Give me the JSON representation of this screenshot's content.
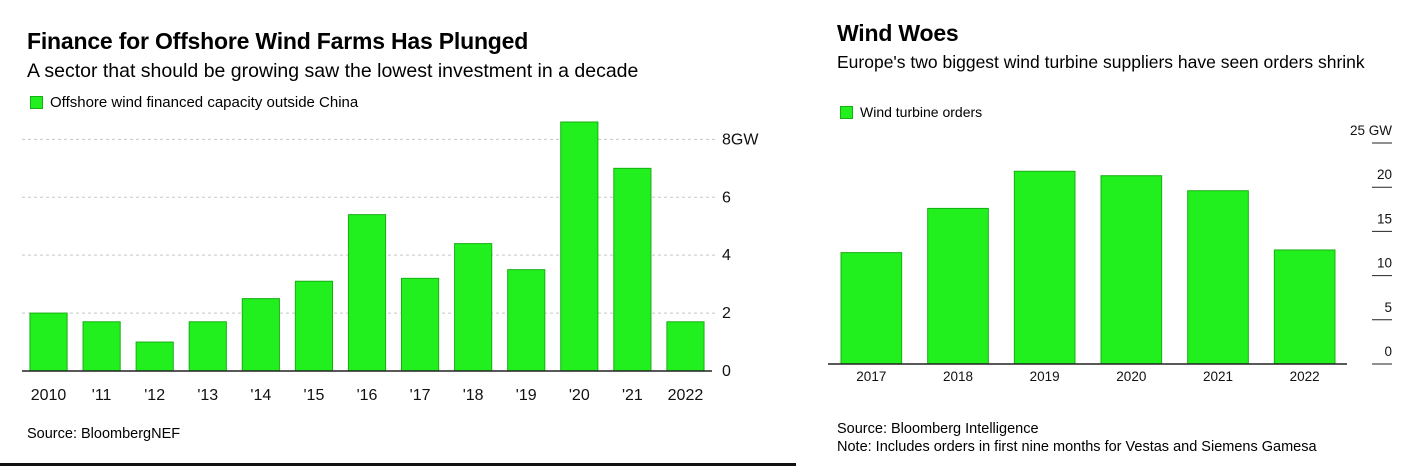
{
  "colors": {
    "bar": "#22f01e",
    "bar_border": "#16b012",
    "grid": "#c8c8c8",
    "axis": "#222222"
  },
  "left": {
    "title": "Finance for Offshore Wind Farms Has Plunged",
    "subtitle": "A sector that should be growing saw the lowest investment in a decade",
    "legend_label": "Offshore wind financed capacity outside China",
    "source": "Source: BloombergNEF"
  },
  "right": {
    "title": "Wind Woes",
    "subtitle": "Europe's two biggest wind turbine suppliers have seen orders shrink",
    "legend_label": "Wind turbine orders",
    "source": "Source: Bloomberg Intelligence",
    "note": "Note: Includes orders in first nine months for Vestas and Siemens Gamesa"
  },
  "chart_data": [
    {
      "type": "bar",
      "title": "Finance for Offshore Wind Farms Has Plunged",
      "subtitle": "A sector that should be growing saw the lowest investment in a decade",
      "categories": [
        "2010",
        "'11",
        "'12",
        "'13",
        "'14",
        "'15",
        "'16",
        "'17",
        "'18",
        "'19",
        "'20",
        "'21",
        "2022"
      ],
      "series": [
        {
          "name": "Offshore wind financed capacity outside China",
          "values": [
            2.0,
            1.7,
            1.0,
            1.7,
            2.5,
            3.1,
            5.4,
            3.2,
            4.4,
            3.5,
            8.6,
            7.0,
            1.7
          ]
        }
      ],
      "yticks": [
        0,
        2,
        4,
        6,
        8
      ],
      "ytick_labels": [
        "0",
        "2",
        "4",
        "6",
        "8GW"
      ],
      "ylim": [
        0,
        8.6
      ],
      "grid": true,
      "legend_position": "top-left",
      "y_axis_side": "right"
    },
    {
      "type": "bar",
      "title": "Wind Woes",
      "subtitle": "Europe's two biggest wind turbine suppliers have seen orders shrink",
      "categories": [
        "2017",
        "2018",
        "2019",
        "2020",
        "2021",
        "2022"
      ],
      "series": [
        {
          "name": "Wind turbine orders",
          "values": [
            12.6,
            17.6,
            21.8,
            21.3,
            19.6,
            12.9
          ]
        }
      ],
      "yticks": [
        0,
        5,
        10,
        15,
        20,
        25
      ],
      "ytick_labels": [
        "0",
        "5",
        "10",
        "15",
        "20",
        "25 GW"
      ],
      "ylim": [
        0,
        25
      ],
      "grid": false,
      "legend_position": "top-left",
      "y_axis_side": "right"
    }
  ]
}
